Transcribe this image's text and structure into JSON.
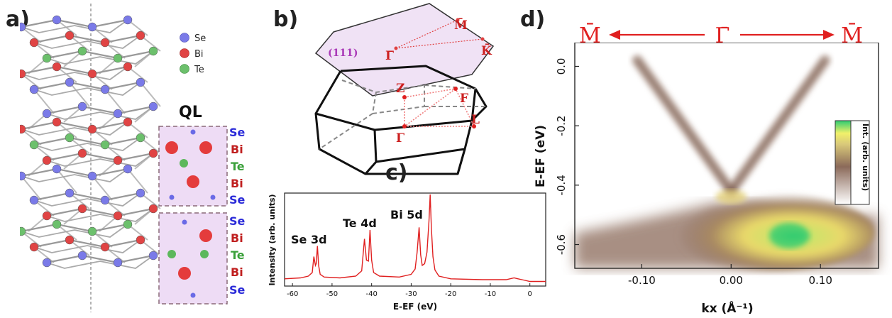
{
  "figure": {
    "panel_labels": [
      "a)",
      "b)",
      "c)",
      "d)"
    ]
  },
  "panel_a": {
    "legend": [
      {
        "label": "Se",
        "color": "#6a6ae6"
      },
      {
        "label": "Bi",
        "color": "#e03a3a"
      },
      {
        "label": "Te",
        "color": "#5cb85c"
      }
    ],
    "ql_title": "QL",
    "ql_layers": [
      {
        "label": "Se",
        "color": "#2a2ad8"
      },
      {
        "label": "Bi",
        "color": "#c02020"
      },
      {
        "label": "Te",
        "color": "#3aa03a"
      },
      {
        "label": "Bi",
        "color": "#c02020"
      },
      {
        "label": "Se",
        "color": "#2a2ad8"
      }
    ]
  },
  "panel_b": {
    "surface_label": "(111)",
    "surface_points": [
      "M̄",
      "K̄",
      "Γ̄"
    ],
    "bulk_points": [
      "Z",
      "F",
      "Γ",
      "L"
    ]
  },
  "panel_c": {
    "peak_labels": [
      "Se 3d",
      "Te 4d",
      "Bi 5d"
    ]
  },
  "panel_d": {
    "direction_labels": [
      "M̄",
      "Γ̄",
      "M̄"
    ],
    "colorbar_label": "Int. (arb. units)",
    "colorbar_colors": [
      "#ffffff",
      "#8b6a5a",
      "#d9c97a",
      "#f1f06a",
      "#2ecc71"
    ]
  },
  "chart_data": [
    {
      "type": "line",
      "id": "xps-spectrum",
      "title": "",
      "xlabel": "E-EF (eV)",
      "ylabel": "Intensity (arb. units)",
      "xlim": [
        -62,
        4
      ],
      "xticks": [
        -60,
        -50,
        -40,
        -30,
        -20,
        -10,
        0
      ],
      "series": [
        {
          "color": "#e02020",
          "x": [
            -62,
            -58,
            -56,
            -55,
            -54.6,
            -54.2,
            -54.0,
            -53.7,
            -53.4,
            -53.0,
            -52,
            -48,
            -44,
            -42.5,
            -41.8,
            -41.3,
            -40.8,
            -40.4,
            -40.0,
            -39.5,
            -38,
            -33,
            -30,
            -29,
            -28.5,
            -28.0,
            -27.6,
            -27.2,
            -26.6,
            -26,
            -25.5,
            -25.2,
            -24.9,
            -24.5,
            -24.0,
            -23,
            -20,
            -12,
            -6,
            -4,
            -3,
            -2,
            0,
            4
          ],
          "y": [
            0.05,
            0.06,
            0.08,
            0.12,
            0.3,
            0.2,
            0.22,
            0.42,
            0.2,
            0.1,
            0.07,
            0.06,
            0.08,
            0.14,
            0.5,
            0.26,
            0.25,
            0.6,
            0.26,
            0.12,
            0.08,
            0.07,
            0.1,
            0.16,
            0.35,
            0.63,
            0.32,
            0.2,
            0.22,
            0.35,
            0.7,
            1.0,
            0.62,
            0.3,
            0.15,
            0.08,
            0.05,
            0.04,
            0.04,
            0.06,
            0.05,
            0.04,
            0.02,
            0.02
          ]
        }
      ]
    },
    {
      "type": "heatmap",
      "id": "arpes-map",
      "title": "",
      "xlabel": "kx (Å⁻¹)",
      "ylabel": "E-EF (eV)",
      "xlim": [
        -0.175,
        0.165
      ],
      "ylim": [
        -0.68,
        0.08
      ],
      "xticks": [
        -0.1,
        0.0,
        0.1
      ],
      "xtick_labels": [
        "-0.10",
        "0.00",
        "0.10"
      ],
      "yticks": [
        0.0,
        -0.2,
        -0.4,
        -0.6
      ],
      "ytick_labels": [
        "0.0",
        "-0.2",
        "-0.4",
        "-0.6"
      ],
      "dirac_point": {
        "kx": 0.0,
        "E": -0.42
      },
      "surface_state_branches": [
        {
          "from": {
            "kx": -0.105,
            "E": 0.02
          },
          "to": {
            "kx": 0.0,
            "E": -0.42
          }
        },
        {
          "from": {
            "kx": 0.105,
            "E": 0.02
          },
          "to": {
            "kx": 0.0,
            "E": -0.42
          }
        }
      ],
      "bulk_valence_band": {
        "top_E": -0.46,
        "max_intensity_at": {
          "kx": 0.065,
          "E": -0.57
        }
      }
    }
  ]
}
